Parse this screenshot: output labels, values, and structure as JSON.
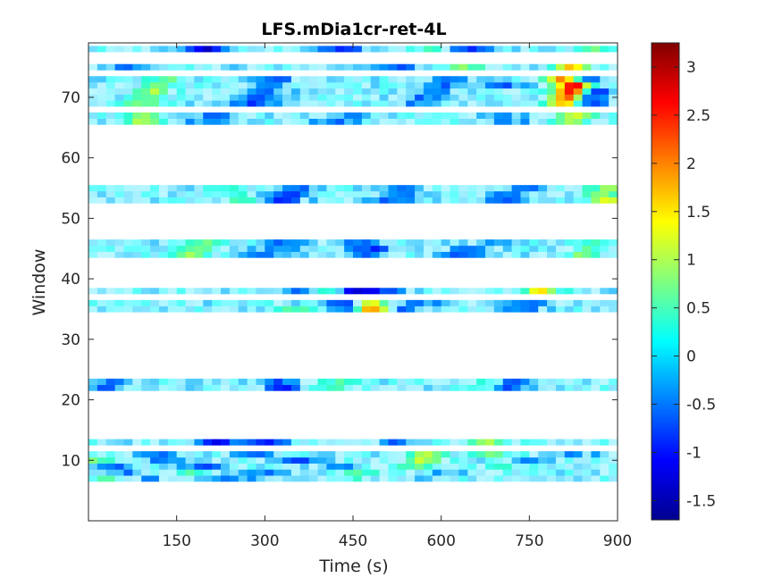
{
  "chart_data": {
    "type": "heatmap",
    "title": "LFS.mDia1cr-ret-4L",
    "xlabel": "Time (s)",
    "ylabel": "Window",
    "xlim": [
      0,
      900
    ],
    "ylim": [
      0,
      79
    ],
    "xticks": [
      150,
      300,
      450,
      600,
      750,
      900
    ],
    "yticks": [
      10,
      20,
      30,
      40,
      50,
      60,
      70
    ],
    "colormap": "jet",
    "clim": [
      -1.7,
      3.25
    ],
    "colorbar_ticks": [
      "3",
      "2.5",
      "2",
      "1.5",
      "1",
      "0.5",
      "0",
      "-0.5",
      "-1",
      "-1.5"
    ],
    "colorbar_tick_values": [
      3,
      2.5,
      2,
      1.5,
      1,
      0.5,
      0,
      -0.5,
      -1,
      -1.5
    ],
    "grid": false,
    "populated_windows": [
      7,
      8,
      9,
      10,
      11,
      13,
      22,
      23,
      35,
      36,
      38,
      44,
      45,
      46,
      53,
      54,
      55,
      66,
      67,
      69,
      70,
      71,
      72,
      73,
      75,
      78
    ],
    "rows": [
      {
        "window": 7,
        "hot": [
          [
            30,
            0.6
          ],
          [
            440,
            0.3
          ]
        ],
        "cold": [
          [
            100,
            -0.3
          ],
          [
            250,
            -0.4
          ],
          [
            560,
            -0.3
          ]
        ]
      },
      {
        "window": 8,
        "hot": [
          [
            180,
            0.4
          ],
          [
            460,
            0.6
          ]
        ],
        "cold": [
          [
            60,
            -0.4
          ],
          [
            300,
            -0.5
          ],
          [
            620,
            -0.3
          ]
        ]
      },
      {
        "window": 9,
        "hot": [
          [
            560,
            0.8
          ],
          [
            700,
            0.6
          ]
        ],
        "cold": [
          [
            40,
            -0.5
          ],
          [
            200,
            -0.6
          ],
          [
            420,
            -0.4
          ]
        ]
      },
      {
        "window": 10,
        "hot": [
          [
            20,
            0.7
          ],
          [
            570,
            1.0
          ]
        ],
        "cold": [
          [
            130,
            -0.5
          ],
          [
            360,
            -0.6
          ],
          [
            760,
            -0.4
          ]
        ]
      },
      {
        "window": 11,
        "hot": [
          [
            575,
            1.1
          ],
          [
            690,
            0.7
          ]
        ],
        "cold": [
          [
            110,
            -0.6
          ],
          [
            280,
            -0.5
          ],
          [
            830,
            -0.3
          ]
        ]
      },
      {
        "window": 13,
        "hot": [
          [
            680,
            0.8
          ],
          [
            760,
            0.4
          ]
        ],
        "cold": [
          [
            220,
            -1.0
          ],
          [
            300,
            -0.9
          ],
          [
            520,
            -0.5
          ]
        ]
      },
      {
        "window": 22,
        "hot": [
          [
            420,
            0.6
          ],
          [
            680,
            1.0
          ]
        ],
        "cold": [
          [
            30,
            -0.5
          ],
          [
            330,
            -0.8
          ],
          [
            700,
            -1.2
          ]
        ]
      },
      {
        "window": 23,
        "hot": [
          [
            430,
            0.5
          ],
          [
            690,
            0.9
          ]
        ],
        "cold": [
          [
            40,
            -0.4
          ],
          [
            320,
            -0.7
          ],
          [
            710,
            -1.0
          ]
        ]
      },
      {
        "window": 35,
        "hot": [
          [
            470,
            1.9
          ],
          [
            490,
            1.5
          ],
          [
            350,
            0.5
          ]
        ],
        "cold": [
          [
            460,
            -1.4
          ],
          [
            520,
            -0.7
          ],
          [
            740,
            -0.6
          ]
        ]
      },
      {
        "window": 36,
        "hot": [
          [
            480,
            1.6
          ],
          [
            300,
            0.4
          ]
        ],
        "cold": [
          [
            440,
            -1.0
          ],
          [
            560,
            -0.6
          ],
          [
            760,
            -0.5
          ]
        ]
      },
      {
        "window": 38,
        "hot": [
          [
            420,
            1.4
          ],
          [
            770,
            1.6
          ]
        ],
        "cold": [
          [
            440,
            -1.6
          ],
          [
            500,
            -0.8
          ],
          [
            360,
            -0.6
          ]
        ]
      },
      {
        "window": 44,
        "hot": [
          [
            180,
            0.9
          ],
          [
            840,
            0.8
          ]
        ],
        "cold": [
          [
            300,
            -0.6
          ],
          [
            470,
            -0.7
          ],
          [
            640,
            -0.6
          ]
        ]
      },
      {
        "window": 45,
        "hot": [
          [
            190,
            0.7
          ],
          [
            850,
            0.6
          ]
        ],
        "cold": [
          [
            320,
            -0.5
          ],
          [
            480,
            -0.8
          ],
          [
            650,
            -0.5
          ]
        ]
      },
      {
        "window": 46,
        "hot": [
          [
            200,
            0.6
          ],
          [
            860,
            0.5
          ]
        ],
        "cold": [
          [
            340,
            -0.6
          ],
          [
            460,
            -0.6
          ],
          [
            680,
            -0.4
          ]
        ]
      },
      {
        "window": 53,
        "hot": [
          [
            880,
            1.2
          ],
          [
            260,
            0.5
          ]
        ],
        "cold": [
          [
            330,
            -0.8
          ],
          [
            520,
            -0.6
          ],
          [
            700,
            -0.6
          ]
        ]
      },
      {
        "window": 54,
        "hot": [
          [
            870,
            1.0
          ],
          [
            250,
            0.4
          ]
        ],
        "cold": [
          [
            340,
            -0.7
          ],
          [
            530,
            -0.6
          ],
          [
            720,
            -0.5
          ]
        ]
      },
      {
        "window": 55,
        "hot": [
          [
            880,
            0.9
          ],
          [
            240,
            0.5
          ]
        ],
        "cold": [
          [
            350,
            -0.6
          ],
          [
            540,
            -0.5
          ],
          [
            740,
            -0.5
          ]
        ]
      },
      {
        "window": 66,
        "hot": [
          [
            90,
            1.0
          ],
          [
            820,
            0.9
          ]
        ],
        "cold": [
          [
            200,
            -0.5
          ],
          [
            420,
            -0.5
          ],
          [
            720,
            -0.4
          ]
        ]
      },
      {
        "window": 67,
        "hot": [
          [
            100,
            0.8
          ],
          [
            830,
            1.2
          ]
        ],
        "cold": [
          [
            210,
            -0.5
          ],
          [
            440,
            -0.4
          ],
          [
            700,
            -0.5
          ]
        ]
      },
      {
        "window": 69,
        "hot": [
          [
            810,
            2.1
          ],
          [
            90,
            0.8
          ]
        ],
        "cold": [
          [
            280,
            -0.7
          ],
          [
            560,
            -0.5
          ],
          [
            840,
            -0.9
          ]
        ]
      },
      {
        "window": 70,
        "hot": [
          [
            815,
            2.4
          ],
          [
            100,
            0.7
          ]
        ],
        "cold": [
          [
            290,
            -0.6
          ],
          [
            570,
            -0.5
          ],
          [
            850,
            -0.9
          ]
        ]
      },
      {
        "window": 71,
        "hot": [
          [
            820,
            2.8
          ],
          [
            110,
            0.9
          ]
        ],
        "cold": [
          [
            300,
            -0.6
          ],
          [
            600,
            -0.4
          ],
          [
            860,
            -1.0
          ]
        ]
      },
      {
        "window": 72,
        "hot": [
          [
            825,
            2.6
          ],
          [
            120,
            0.8
          ]
        ],
        "cold": [
          [
            310,
            -0.5
          ],
          [
            610,
            -0.5
          ],
          [
            700,
            -0.6
          ]
        ]
      },
      {
        "window": 73,
        "hot": [
          [
            810,
            2.2
          ],
          [
            130,
            0.7
          ]
        ],
        "cold": [
          [
            320,
            -0.5
          ],
          [
            620,
            -0.5
          ],
          [
            840,
            -0.8
          ]
        ]
      },
      {
        "window": 75,
        "hot": [
          [
            640,
            0.8
          ],
          [
            820,
            1.6
          ]
        ],
        "cold": [
          [
            60,
            -0.5
          ],
          [
            250,
            -0.4
          ],
          [
            520,
            -0.6
          ]
        ]
      },
      {
        "window": 78,
        "hot": [
          [
            580,
            0.5
          ],
          [
            860,
            0.6
          ]
        ],
        "cold": [
          [
            200,
            -1.2
          ],
          [
            430,
            -0.9
          ],
          [
            650,
            -0.8
          ]
        ]
      }
    ]
  }
}
